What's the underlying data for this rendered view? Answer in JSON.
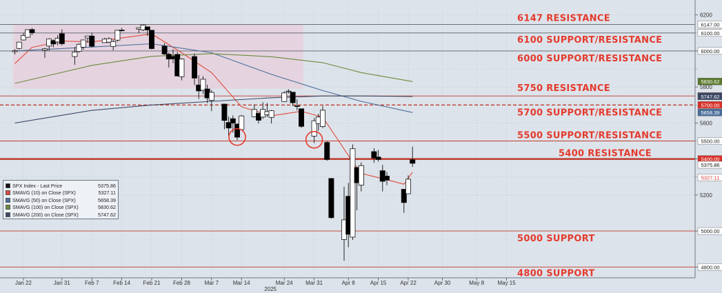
{
  "chart_data": {
    "type": "candlestick",
    "x_axis": {
      "ticks": [
        "Jan 22",
        "Jan 31",
        "Feb 7",
        "Feb 14",
        "Feb 21",
        "Feb 28",
        "Mar 7",
        "Mar 14",
        "Mar 24",
        "Mar 31",
        "Apr 8",
        "Apr 15",
        "Apr 22",
        "Apr 30",
        "May 8",
        "May 15"
      ],
      "year_label": "2025"
    },
    "y_axis": {
      "ticks": [
        4800,
        5000,
        5200,
        5400,
        5600,
        5800,
        6000,
        6200
      ],
      "range": [
        4740,
        6260
      ],
      "side": "right"
    },
    "grid": true,
    "shaded_region": {
      "from": "Jan 20",
      "to": "Mar 28",
      "y_from": 5790,
      "y_to": 6150
    },
    "levels": [
      {
        "value": 6147,
        "label": "6147 RESISTANCE",
        "style": "solid",
        "tag": "6147.00"
      },
      {
        "value": 6100,
        "label": "6100 SUPPORT/RESISTANCE",
        "style": "solid",
        "tag": "6100.00"
      },
      {
        "value": 6000,
        "label": "6000 SUPPORT/RESISTANCE",
        "style": "solid",
        "tag": "6000.00"
      },
      {
        "value": 5750,
        "label": "5750 RESISTANCE",
        "style": "solid",
        "tag": "5750.00"
      },
      {
        "value": 5700,
        "label": "5700 SUPPORT/RESISTANCE",
        "style": "dashed",
        "tag": "5700.00"
      },
      {
        "value": 5500,
        "label": "5500 SUPPORT/RESISTANCE",
        "style": "solid",
        "tag": "5500.00"
      },
      {
        "value": 5400,
        "label": "5400 RESISTANCE",
        "style": "thick",
        "tag": "5400.00"
      },
      {
        "value": 5000,
        "label": "5000 SUPPORT",
        "style": "solid",
        "tag": "5000.00"
      },
      {
        "value": 4800,
        "label": "4800 SUPPORT",
        "style": "solid",
        "tag": "4800.00"
      }
    ],
    "right_tags": [
      {
        "value": 5830.62,
        "text": "5830.62",
        "color": "#5b7a2e"
      },
      {
        "value": 5747.62,
        "text": "5747.62",
        "color": "#3c4a66"
      },
      {
        "value": 5658.39,
        "text": "5658.39",
        "color": "#4a6e9a"
      },
      {
        "value": 5375.86,
        "text": "5375.86",
        "color": "#222222"
      },
      {
        "value": 5327.11,
        "text": "5327.11",
        "color": "#e04a3c"
      }
    ],
    "circles": [
      {
        "date": "Mar 13",
        "value": 5522
      },
      {
        "date": "Mar 31",
        "value": 5507
      }
    ],
    "candles": [
      {
        "d": "Jan 20",
        "o": 5996,
        "h": 6010,
        "l": 5980,
        "c": 6001
      },
      {
        "d": "Jan 21",
        "o": 6014,
        "h": 6051,
        "l": 6007,
        "c": 6049
      },
      {
        "d": "Jan 22",
        "o": 6061,
        "h": 6100,
        "l": 6058,
        "c": 6086
      },
      {
        "d": "Jan 23",
        "o": 6076,
        "h": 6119,
        "l": 6074,
        "c": 6118
      },
      {
        "d": "Jan 24",
        "o": 6119,
        "h": 6128,
        "l": 6088,
        "c": 6101
      },
      {
        "d": "Jan 27",
        "o": 6004,
        "h": 6017,
        "l": 5962,
        "c": 6012
      },
      {
        "d": "Jan 28",
        "o": 6027,
        "h": 6070,
        "l": 6000,
        "c": 6067
      },
      {
        "d": "Jan 29",
        "o": 6058,
        "h": 6063,
        "l": 6020,
        "c": 6039
      },
      {
        "d": "Jan 30",
        "o": 6050,
        "h": 6087,
        "l": 6032,
        "c": 6071
      },
      {
        "d": "Jan 31",
        "o": 6096,
        "h": 6120,
        "l": 6030,
        "c": 6040
      },
      {
        "d": "Feb 3",
        "o": 5969,
        "h": 6022,
        "l": 5923,
        "c": 5994
      },
      {
        "d": "Feb 4",
        "o": 5998,
        "h": 6042,
        "l": 5990,
        "c": 6037
      },
      {
        "d": "Feb 5",
        "o": 6021,
        "h": 6062,
        "l": 6007,
        "c": 6061
      },
      {
        "d": "Feb 6",
        "o": 6072,
        "h": 6084,
        "l": 6046,
        "c": 6083
      },
      {
        "d": "Feb 7",
        "o": 6083,
        "h": 6101,
        "l": 6020,
        "c": 6026
      },
      {
        "d": "Feb 10",
        "o": 6046,
        "h": 6073,
        "l": 6045,
        "c": 6066
      },
      {
        "d": "Feb 11",
        "o": 6049,
        "h": 6076,
        "l": 6042,
        "c": 6068
      },
      {
        "d": "Feb 12",
        "o": 6025,
        "h": 6063,
        "l": 6003,
        "c": 6052
      },
      {
        "d": "Feb 13",
        "o": 6060,
        "h": 6116,
        "l": 6051,
        "c": 6115
      },
      {
        "d": "Feb 14",
        "o": 6116,
        "h": 6128,
        "l": 6107,
        "c": 6115
      },
      {
        "d": "Feb 18",
        "o": 6121,
        "h": 6129,
        "l": 6099,
        "c": 6129
      },
      {
        "d": "Feb 19",
        "o": 6117,
        "h": 6147,
        "l": 6111,
        "c": 6144
      },
      {
        "d": "Feb 20",
        "o": 6134,
        "h": 6134,
        "l": 6084,
        "c": 6117
      },
      {
        "d": "Feb 21",
        "o": 6115,
        "h": 6115,
        "l": 6008,
        "c": 6013
      },
      {
        "d": "Feb 24",
        "o": 6027,
        "h": 6043,
        "l": 5977,
        "c": 5983
      },
      {
        "d": "Feb 25",
        "o": 5982,
        "h": 5992,
        "l": 5908,
        "c": 5955
      },
      {
        "d": "Feb 26",
        "o": 5970,
        "h": 6009,
        "l": 5932,
        "c": 5956
      },
      {
        "d": "Feb 27",
        "o": 5981,
        "h": 5994,
        "l": 5858,
        "c": 5861
      },
      {
        "d": "Feb 28",
        "o": 5857,
        "h": 5959,
        "l": 5837,
        "c": 5955
      },
      {
        "d": "Mar 3",
        "o": 5969,
        "h": 5986,
        "l": 5810,
        "c": 5849
      },
      {
        "d": "Mar 4",
        "o": 5811,
        "h": 5865,
        "l": 5733,
        "c": 5778
      },
      {
        "d": "Mar 5",
        "o": 5782,
        "h": 5860,
        "l": 5762,
        "c": 5843
      },
      {
        "d": "Mar 6",
        "o": 5789,
        "h": 5813,
        "l": 5711,
        "c": 5739
      },
      {
        "d": "Mar 7",
        "o": 5726,
        "h": 5783,
        "l": 5666,
        "c": 5770
      },
      {
        "d": "Mar 10",
        "o": 5705,
        "h": 5705,
        "l": 5565,
        "c": 5614
      },
      {
        "d": "Mar 11",
        "o": 5603,
        "h": 5636,
        "l": 5529,
        "c": 5572
      },
      {
        "d": "Mar 12",
        "o": 5624,
        "h": 5642,
        "l": 5546,
        "c": 5599
      },
      {
        "d": "Mar 13",
        "o": 5594,
        "h": 5597,
        "l": 5504,
        "c": 5521
      },
      {
        "d": "Mar 14",
        "o": 5563,
        "h": 5645,
        "l": 5563,
        "c": 5639
      },
      {
        "d": "Mar 17",
        "o": 5635,
        "h": 5703,
        "l": 5631,
        "c": 5675
      },
      {
        "d": "Mar 18",
        "o": 5654,
        "h": 5654,
        "l": 5597,
        "c": 5615
      },
      {
        "d": "Mar 19",
        "o": 5633,
        "h": 5715,
        "l": 5622,
        "c": 5675
      },
      {
        "d": "Mar 20",
        "o": 5646,
        "h": 5711,
        "l": 5633,
        "c": 5663
      },
      {
        "d": "Mar 21",
        "o": 5631,
        "h": 5672,
        "l": 5597,
        "c": 5668
      },
      {
        "d": "Mar 24",
        "o": 5719,
        "h": 5775,
        "l": 5719,
        "c": 5767
      },
      {
        "d": "Mar 25",
        "o": 5776,
        "h": 5787,
        "l": 5764,
        "c": 5777
      },
      {
        "d": "Mar 26",
        "o": 5771,
        "h": 5772,
        "l": 5694,
        "c": 5712
      },
      {
        "d": "Mar 27",
        "o": 5695,
        "h": 5732,
        "l": 5670,
        "c": 5693
      },
      {
        "d": "Mar 28",
        "o": 5679,
        "h": 5679,
        "l": 5572,
        "c": 5581
      },
      {
        "d": "Mar 31",
        "o": 5527,
        "h": 5627,
        "l": 5489,
        "c": 5612
      },
      {
        "d": "Apr 1",
        "o": 5597,
        "h": 5651,
        "l": 5557,
        "c": 5633
      },
      {
        "d": "Apr 2",
        "o": 5580,
        "h": 5695,
        "l": 5572,
        "c": 5671
      },
      {
        "d": "Apr 3",
        "o": 5492,
        "h": 5500,
        "l": 5390,
        "c": 5397
      },
      {
        "d": "Apr 4",
        "o": 5292,
        "h": 5292,
        "l": 5069,
        "c": 5074
      },
      {
        "d": "Apr 7",
        "o": 4953,
        "h": 5246,
        "l": 4835,
        "c": 5062
      },
      {
        "d": "Apr 8",
        "o": 5193,
        "h": 5267,
        "l": 4910,
        "c": 4982
      },
      {
        "d": "Apr 9",
        "o": 4966,
        "h": 5481,
        "l": 4950,
        "c": 5457
      },
      {
        "d": "Apr 10",
        "o": 5353,
        "h": 5353,
        "l": 5115,
        "c": 5268
      },
      {
        "d": "Apr 11",
        "o": 5255,
        "h": 5381,
        "l": 5220,
        "c": 5363
      },
      {
        "d": "Apr 14",
        "o": 5441,
        "h": 5460,
        "l": 5379,
        "c": 5406
      },
      {
        "d": "Apr 15",
        "o": 5411,
        "h": 5450,
        "l": 5386,
        "c": 5397
      },
      {
        "d": "Apr 16",
        "o": 5335,
        "h": 5367,
        "l": 5220,
        "c": 5276
      },
      {
        "d": "Apr 17",
        "o": 5305,
        "h": 5328,
        "l": 5255,
        "c": 5283
      },
      {
        "d": "Apr 21",
        "o": 5232,
        "h": 5232,
        "l": 5101,
        "c": 5158
      },
      {
        "d": "Apr 22",
        "o": 5207,
        "h": 5309,
        "l": 5207,
        "c": 5288
      },
      {
        "d": "Apr 23",
        "o": 5396,
        "h": 5469,
        "l": 5356,
        "c": 5376
      }
    ],
    "moving_averages": [
      {
        "name": "SMAVG (10)  on Close (SPX)",
        "color": "#e04a3c",
        "values": [
          [
            "Jan 20",
            5930
          ],
          [
            "Jan 24",
            6020
          ],
          [
            "Jan 31",
            6055
          ],
          [
            "Feb 7",
            6050
          ],
          [
            "Feb 14",
            6072
          ],
          [
            "Feb 21",
            6095
          ],
          [
            "Feb 28",
            5990
          ],
          [
            "Mar 7",
            5880
          ],
          [
            "Mar 14",
            5690
          ],
          [
            "Mar 21",
            5640
          ],
          [
            "Mar 28",
            5665
          ],
          [
            "Apr 2",
            5632
          ],
          [
            "Apr 8",
            5420
          ],
          [
            "Apr 11",
            5320
          ],
          [
            "Apr 17",
            5285
          ],
          [
            "Apr 21",
            5260
          ],
          [
            "Apr 23",
            5327
          ]
        ]
      },
      {
        "name": "SMAVG (50)  on Close (SPX)",
        "color": "#4a6e9a",
        "values": [
          [
            "Jan 20",
            6000
          ],
          [
            "Feb 7",
            6022
          ],
          [
            "Feb 21",
            6040
          ],
          [
            "Mar 7",
            5990
          ],
          [
            "Mar 21",
            5870
          ],
          [
            "Apr 2",
            5780
          ],
          [
            "Apr 11",
            5720
          ],
          [
            "Apr 23",
            5658
          ]
        ]
      },
      {
        "name": "SMAVG (100)  on Close (SPX)",
        "color": "#6b8a3a",
        "values": [
          [
            "Jan 20",
            5820
          ],
          [
            "Feb 7",
            5920
          ],
          [
            "Feb 21",
            5970
          ],
          [
            "Mar 7",
            5985
          ],
          [
            "Mar 21",
            5968
          ],
          [
            "Apr 2",
            5935
          ],
          [
            "Apr 11",
            5880
          ],
          [
            "Apr 23",
            5830
          ]
        ]
      },
      {
        "name": "SMAVG (200)  on Close (SPX)",
        "color": "#3c4a66",
        "values": [
          [
            "Jan 20",
            5600
          ],
          [
            "Feb 7",
            5670
          ],
          [
            "Feb 21",
            5700
          ],
          [
            "Mar 7",
            5720
          ],
          [
            "Mar 21",
            5740
          ],
          [
            "Apr 2",
            5750
          ],
          [
            "Apr 11",
            5750
          ],
          [
            "Apr 23",
            5747
          ]
        ]
      }
    ],
    "legend": {
      "placement": "bottom-left",
      "title": "SPX Index - Last Price",
      "title_value": "5375.86",
      "entries": [
        {
          "name": "SMAVG (10)  on Close (SPX)",
          "value": "5327.11",
          "color": "#e04a3c"
        },
        {
          "name": "SMAVG (50)  on Close (SPX)",
          "value": "5658.39",
          "color": "#4a6e9a"
        },
        {
          "name": "SMAVG (100)  on Close (SPX)",
          "value": "5830.62",
          "color": "#6b8a3a"
        },
        {
          "name": "SMAVG (200)  on Close (SPX)",
          "value": "5747.62",
          "color": "#3c4a66"
        }
      ]
    },
    "colors": {
      "level_line": "#c0392b",
      "label": "#e43a2d",
      "shade": "#e7cfdc",
      "up": "#ffffff",
      "down": "#000000"
    }
  }
}
